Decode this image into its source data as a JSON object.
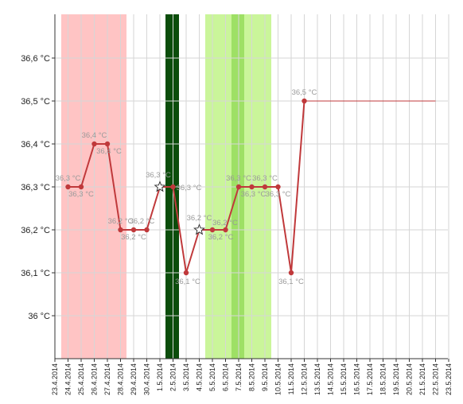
{
  "chart_data": {
    "type": "line",
    "title": "",
    "xlabel": "",
    "ylabel": "",
    "ylim": [
      35.9,
      36.7
    ],
    "y_ticks": [
      36.0,
      36.1,
      36.2,
      36.3,
      36.4,
      36.5,
      36.6
    ],
    "y_tick_labels": [
      "36 °C",
      "36,1 °C",
      "36,2 °C",
      "36,3 °C",
      "36,4 °C",
      "36,5 °C",
      "36,6 °C"
    ],
    "x": [
      "23.4.2014",
      "24.4.2014",
      "25.4.2014",
      "26.4.2014",
      "27.4.2014",
      "28.4.2014",
      "29.4.2014",
      "30.4.2014",
      "1.5.2014",
      "2.5.2014",
      "3.5.2014",
      "4.5.2014",
      "5.5.2014",
      "6.5.2014",
      "7.5.2014",
      "8.5.2014",
      "9.5.2014",
      "10.5.2014",
      "11.5.2014",
      "12.5.2014",
      "13.5.2014",
      "14.5.2014",
      "15.5.2014",
      "16.5.2014",
      "17.5.2014",
      "18.5.2014",
      "19.5.2014",
      "20.5.2014",
      "21.5.2014",
      "22.5.2014",
      "23.5.2014"
    ],
    "grid": true,
    "series": [
      {
        "color": "#c0393b",
        "points": [
          {
            "x": "24.4.2014",
            "y": 36.3,
            "label": "36,3 °C"
          },
          {
            "x": "25.4.2014",
            "y": 36.3,
            "label": "36,3 °C"
          },
          {
            "x": "26.4.2014",
            "y": 36.4,
            "label": "36,4 °C"
          },
          {
            "x": "27.4.2014",
            "y": 36.4,
            "label": "36,4 °C"
          },
          {
            "x": "28.4.2014",
            "y": 36.2,
            "label": "36,2 °C"
          },
          {
            "x": "29.4.2014",
            "y": 36.2,
            "label": "36,2 °C"
          },
          {
            "x": "30.4.2014",
            "y": 36.2,
            "label": "36,2 °C"
          },
          {
            "x": "1.5.2014",
            "y": 36.3,
            "label": "36,3 °C",
            "marker": "star"
          },
          {
            "x": "2.5.2014",
            "y": 36.3,
            "label": "36,3 °C"
          },
          {
            "x": "3.5.2014",
            "y": 36.1,
            "label": "36,1 °C"
          },
          {
            "x": "4.5.2014",
            "y": 36.2,
            "label": "36,2 °C",
            "marker": "star"
          },
          {
            "x": "5.5.2014",
            "y": 36.2,
            "label": "36,2 °C"
          },
          {
            "x": "6.5.2014",
            "y": 36.2,
            "label": "36,2 °C"
          },
          {
            "x": "7.5.2014",
            "y": 36.3,
            "label": "36,3 °C"
          },
          {
            "x": "8.5.2014",
            "y": 36.3,
            "label": "36,3 °C"
          },
          {
            "x": "9.5.2014",
            "y": 36.3,
            "label": "36,3 °C"
          },
          {
            "x": "10.5.2014",
            "y": 36.3,
            "label": "36,3 °C"
          },
          {
            "x": "11.5.2014",
            "y": 36.1,
            "label": "36,1 °C"
          },
          {
            "x": "12.5.2014",
            "y": 36.5,
            "label": "36,5 °C"
          }
        ]
      }
    ],
    "coverline": {
      "from": "12.5.2014",
      "to": "22.5.2014",
      "y": 36.5,
      "color": "#c0393b"
    },
    "bands": [
      {
        "from": "23.5.2014_dummy",
        "start": "23.4.2014",
        "end": "28.4.2014",
        "color": "#ffc4c4"
      },
      {
        "start": "1.5.2014",
        "end": "2.5.2014",
        "color": "#0b4d0b",
        "narrow": true
      },
      {
        "start": "4.5.2014",
        "end": "9.5.2014",
        "color": "#caf59a"
      },
      {
        "start": "6.5.2014",
        "end": "7.5.2014",
        "color": "#9ee065",
        "narrow": true
      }
    ]
  }
}
